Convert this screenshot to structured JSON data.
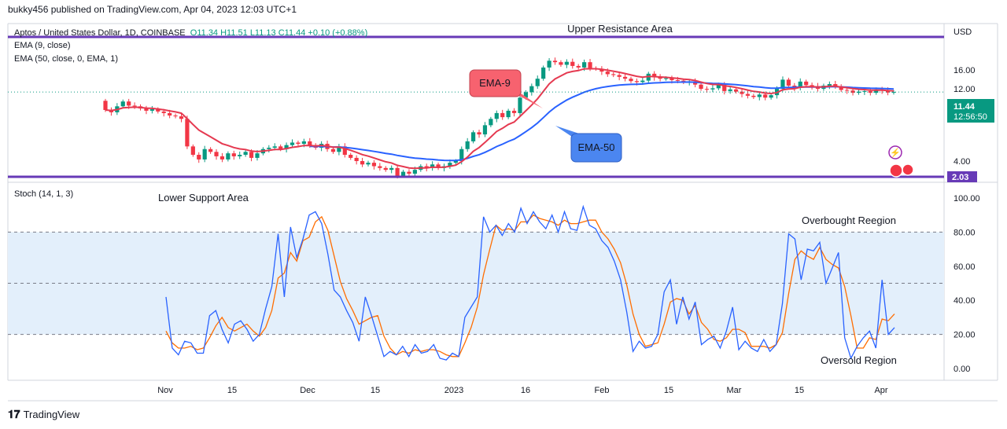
{
  "header": {
    "published": "bukky456 published on TradingView.com, Apr 04, 2023 12:03 UTC+1"
  },
  "legend": {
    "symbol": "Aptos / United States Dollar, 1D, COINBASE",
    "ohlc": "O11.34  H11.51  L11.13  C11.44  +0.10 (+0.88%)",
    "ema9": "EMA (9, close)",
    "ema50": "EMA (50, close, 0, EMA, 1)",
    "stoch": "Stoch (14, 1, 3)"
  },
  "annotations": {
    "upper_resistance": "Upper Resistance Area",
    "lower_support": "Lower Support Area",
    "ema9_label": "EMA-9",
    "ema50_label": "EMA-50",
    "overbought": "Overbought Reegion",
    "oversold": "Oversold Region"
  },
  "price_axis": {
    "currency": "USD",
    "current_price": "11.44",
    "countdown": "12:56:50",
    "support_level": "2.03"
  },
  "footer": {
    "brand": "TradingView"
  },
  "colors": {
    "up": "#089981",
    "down": "#f23645",
    "ema9": "#e53950",
    "ema50": "#2962ff",
    "level": "#673ab7",
    "stoch_k": "#2962ff",
    "stoch_d": "#ff6d00",
    "stoch_band": "#e3effb",
    "ema9_box": "#f7626f",
    "ema50_box": "#4b86f0"
  },
  "chart_data": [
    {
      "type": "candlestick",
      "title": "Aptos / United States Dollar, 1D, COINBASE",
      "x_ticks": [
        "Nov",
        "15",
        "Dec",
        "15",
        "2023",
        "16",
        "Feb",
        "15",
        "Mar",
        "15",
        "Apr"
      ],
      "y_ticks": [
        "4.00",
        "8.00",
        "12.00",
        "16.00"
      ],
      "ylim": [
        2,
        20
      ],
      "levels": {
        "upper_resistance": 19.8,
        "lower_support": 2.03
      },
      "close": [
        8.7,
        8.4,
        9.2,
        9.9,
        9.3,
        9.2,
        8.9,
        8.6,
        8.8,
        8.5,
        8.3,
        8.0,
        7.9,
        7.6,
        5.0,
        4.4,
        4.1,
        4.8,
        4.6,
        4.3,
        4.1,
        4.5,
        4.3,
        4.4,
        4.6,
        4.2,
        4.5,
        4.8,
        4.9,
        5.0,
        4.8,
        5.1,
        5.3,
        5.2,
        5.4,
        5.1,
        4.9,
        5.2,
        4.8,
        4.6,
        5.0,
        4.4,
        4.2,
        4.0,
        3.8,
        3.9,
        3.7,
        3.6,
        3.5,
        3.6,
        3.2,
        3.4,
        3.3,
        3.5,
        3.7,
        3.6,
        3.8,
        3.6,
        3.7,
        3.9,
        4.0,
        4.8,
        5.4,
        6.2,
        6.0,
        6.9,
        7.6,
        8.3,
        7.8,
        8.6,
        8.3,
        10.5,
        11.4,
        12.5,
        14.0,
        16.6,
        18.4,
        18.0,
        17.3,
        18.1,
        17.0,
        16.6,
        18.0,
        16.4,
        16.3,
        15.6,
        15.0,
        14.8,
        14.4,
        14.0,
        13.5,
        13.3,
        13.6,
        15.1,
        14.3,
        14.0,
        14.1,
        13.7,
        13.6,
        13.3,
        13.4,
        12.8,
        12.0,
        11.9,
        12.1,
        12.8,
        11.6,
        11.9,
        11.5,
        11.1,
        10.8,
        10.6,
        11.0,
        10.5,
        10.9,
        12.0,
        13.8,
        12.6,
        12.2,
        13.4,
        12.7,
        12.5,
        12.0,
        12.6,
        12.9,
        12.5,
        11.8,
        11.7,
        11.3,
        11.5,
        11.6,
        11.3,
        11.9,
        11.7,
        11.34,
        11.44
      ],
      "ema9_start_index": 0,
      "ema50_start_index": 35
    },
    {
      "type": "line",
      "title": "Stoch (14, 1, 3)",
      "y_ticks": [
        "0.00",
        "20.00",
        "40.00",
        "60.00",
        "80.00",
        "100.00"
      ],
      "ylim": [
        0,
        100
      ],
      "bands": [
        20,
        50,
        80
      ],
      "series": [
        {
          "name": "K",
          "values": [
            42,
            12,
            8,
            16,
            15,
            9,
            9,
            31,
            34,
            23,
            15,
            26,
            28,
            23,
            16,
            20,
            35,
            48,
            79,
            42,
            83,
            65,
            76,
            90,
            92,
            85,
            67,
            46,
            42,
            34,
            27,
            16,
            42,
            31,
            19,
            7,
            10,
            8,
            13,
            7,
            14,
            9,
            10,
            14,
            6,
            5,
            9,
            7,
            30,
            36,
            42,
            89,
            80,
            84,
            78,
            85,
            80,
            94,
            85,
            92,
            86,
            82,
            90,
            80,
            92,
            82,
            81,
            95,
            84,
            82,
            75,
            71,
            63,
            52,
            33,
            10,
            16,
            12,
            13,
            20,
            45,
            52,
            26,
            42,
            29,
            39,
            14,
            17,
            19,
            12,
            22,
            36,
            11,
            16,
            12,
            10,
            17,
            10,
            14,
            38,
            79,
            76,
            52,
            70,
            69,
            74,
            50,
            59,
            68,
            18,
            6,
            13,
            18,
            22,
            12,
            52,
            20,
            24
          ]
        },
        {
          "name": "D",
          "values": [
            22,
            15,
            12,
            12,
            13,
            11,
            12,
            18,
            25,
            30,
            24,
            22,
            24,
            26,
            22,
            19,
            24,
            34,
            53,
            56,
            68,
            63,
            75,
            77,
            86,
            89,
            81,
            66,
            51,
            41,
            34,
            26,
            28,
            30,
            31,
            19,
            12,
            8,
            10,
            9,
            11,
            10,
            11,
            11,
            10,
            8,
            7,
            7,
            15,
            24,
            36,
            55,
            70,
            84,
            81,
            82,
            81,
            86,
            86,
            90,
            88,
            87,
            86,
            84,
            87,
            85,
            85,
            86,
            87,
            87,
            80,
            76,
            70,
            62,
            49,
            32,
            20,
            13,
            14,
            15,
            26,
            39,
            41,
            40,
            32,
            37,
            27,
            23,
            17,
            16,
            18,
            23,
            23,
            21,
            13,
            13,
            13,
            12,
            14,
            21,
            44,
            64,
            69,
            66,
            64,
            71,
            64,
            61,
            59,
            48,
            31,
            12,
            12,
            18,
            17,
            29,
            28,
            32
          ]
        }
      ]
    }
  ]
}
